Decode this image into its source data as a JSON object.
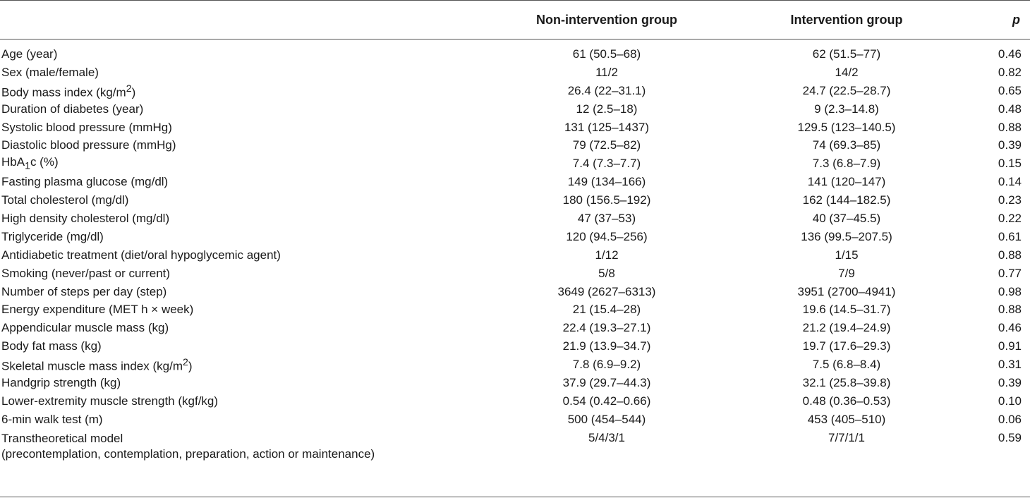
{
  "headers": {
    "label": "",
    "non_intervention": "Non-intervention group",
    "intervention": "Intervention group",
    "p": "p"
  },
  "rows": [
    {
      "label": "Age (year)",
      "non": "61 (50.5–68)",
      "int": "62 (51.5–77)",
      "p": "0.46"
    },
    {
      "label": "Sex (male/female)",
      "non": "11/2",
      "int": "14/2",
      "p": "0.82"
    },
    {
      "label_pre": "Body mass index (kg/m",
      "label_sup": "2",
      "label_post": ")",
      "non": "26.4 (22–31.1)",
      "int": "24.7 (22.5–28.7)",
      "p": "0.65"
    },
    {
      "label": "Duration of diabetes (year)",
      "non": "12 (2.5–18)",
      "int": "9 (2.3–14.8)",
      "p": "0.48"
    },
    {
      "label": "Systolic blood pressure (mmHg)",
      "non": "131 (125–1437)",
      "int": "129.5 (123–140.5)",
      "p": "0.88"
    },
    {
      "label": "Diastolic blood pressure (mmHg)",
      "non": "79 (72.5–82)",
      "int": "74 (69.3–85)",
      "p": "0.39"
    },
    {
      "label_pre": "HbA",
      "label_sub": "1",
      "label_post": "c (%)",
      "non": "7.4 (7.3–7.7)",
      "int": "7.3 (6.8–7.9)",
      "p": "0.15"
    },
    {
      "label": "Fasting plasma glucose (mg/dl)",
      "non": "149 (134–166)",
      "int": "141 (120–147)",
      "p": "0.14"
    },
    {
      "label": "Total cholesterol (mg/dl)",
      "non": "180 (156.5–192)",
      "int": "162 (144–182.5)",
      "p": "0.23"
    },
    {
      "label": "High density cholesterol (mg/dl)",
      "non": "47 (37–53)",
      "int": "40 (37–45.5)",
      "p": "0.22"
    },
    {
      "label": "Triglyceride (mg/dl)",
      "non": "120 (94.5–256)",
      "int": "136 (99.5–207.5)",
      "p": "0.61"
    },
    {
      "label": "Antidiabetic treatment (diet/oral hypoglycemic agent)",
      "non": "1/12",
      "int": "1/15",
      "p": "0.88"
    },
    {
      "label": "Smoking (never/past or current)",
      "non": "5/8",
      "int": "7/9",
      "p": "0.77"
    },
    {
      "label": "Number of steps per day (step)",
      "non": "3649 (2627–6313)",
      "int": "3951 (2700–4941)",
      "p": "0.98"
    },
    {
      "label": "Energy expenditure (MET h × week)",
      "non": "21 (15.4–28)",
      "int": "19.6 (14.5–31.7)",
      "p": "0.88"
    },
    {
      "label": "Appendicular muscle mass (kg)",
      "non": "22.4 (19.3–27.1)",
      "int": "21.2 (19.4–24.9)",
      "p": "0.46"
    },
    {
      "label": "Body fat mass (kg)",
      "non": "21.9 (13.9–34.7)",
      "int": "19.7 (17.6–29.3)",
      "p": "0.91"
    },
    {
      "label_pre": "Skeletal muscle mass index (kg/m",
      "label_sup": "2",
      "label_post": ")",
      "non": "7.8 (6.9–9.2)",
      "int": "7.5 (6.8–8.4)",
      "p": "0.31"
    },
    {
      "label": "Handgrip strength (kg)",
      "non": "37.9 (29.7–44.3)",
      "int": "32.1 (25.8–39.8)",
      "p": "0.39"
    },
    {
      "label": "Lower-extremity muscle strength (kgf/kg)",
      "non": "0.54 (0.42–0.66)",
      "int": "0.48 (0.36–0.53)",
      "p": "0.10"
    },
    {
      "label": "6-min walk test (m)",
      "non": "500 (454–544)",
      "int": "453 (405–510)",
      "p": "0.06"
    },
    {
      "label": "Transtheoretical model",
      "label_line2": "(precontemplation, contemplation, preparation, action or maintenance)",
      "non": "5/4/3/1",
      "int": "7/7/1/1",
      "p": "0.59"
    }
  ]
}
